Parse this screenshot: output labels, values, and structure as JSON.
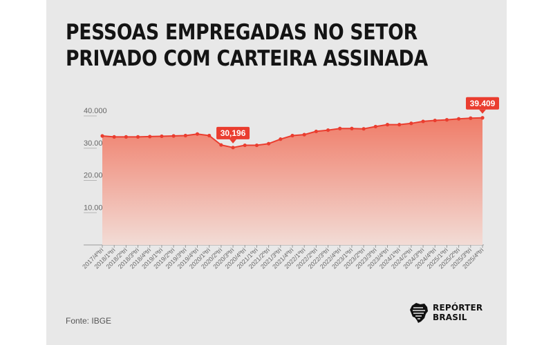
{
  "title_lines": [
    "PESSOAS EMPREGADAS NO SETOR",
    "PRIVADO COM CARTEIRA ASSINADA"
  ],
  "source": "Fonte: IBGE",
  "logo": {
    "line1": "REPÓRTER",
    "line2": "BRASIL",
    "icon": "brazil-map-icon"
  },
  "colors": {
    "accent": "#ea3d2f",
    "area_top": "#f07c68",
    "area_bottom": "#f2dcd6",
    "background": "#e8e8e8",
    "title": "#141414"
  },
  "chart_data": {
    "type": "area",
    "title": "PESSOAS EMPREGADAS NO SETOR PRIVADO COM CARTEIRA ASSINADA",
    "xlabel": "",
    "ylabel": "",
    "ylim": [
      0,
      40000
    ],
    "yticks": [
      10000,
      20000,
      30000,
      40000
    ],
    "ytick_labels": [
      "10.000",
      "20.000",
      "30.000",
      "40.000"
    ],
    "grid": false,
    "categories": [
      "2017/4ºtri",
      "2018/1ºtri",
      "2018/2ºtri",
      "2018/3ºtri",
      "2018/4ºtri",
      "2019/1ºtri",
      "2019/2ºtri",
      "2019/3ºtri",
      "2019/4ºtri",
      "2020/1ºtri",
      "2020/2ºtri",
      "2020/3ºtri",
      "2020/4ºtri",
      "2021/1ºtri",
      "2021/2ºtri",
      "2021/3ºtri",
      "2021/4ºtri",
      "2022/1ºtri",
      "2022/2ºtri",
      "2022/3ºtri",
      "2022/4ºtri",
      "2023/1ºtri",
      "2023/2ºtri",
      "2023/3ºtri",
      "2023/4ºtri",
      "2024/1ºtri",
      "2024/2ºtri",
      "2024/3ºtri",
      "2024/4ºtri",
      "2025/1ºtri",
      "2025/2ºtri",
      "2025/3ºtri",
      "2025/4ºtri"
    ],
    "values": [
      33800,
      33500,
      33500,
      33500,
      33600,
      33700,
      33800,
      33900,
      34400,
      33900,
      31000,
      30196,
      30900,
      30900,
      31400,
      32800,
      33900,
      34200,
      35200,
      35600,
      36100,
      36100,
      36000,
      36700,
      37300,
      37300,
      37700,
      38300,
      38600,
      38800,
      39100,
      39300,
      39409
    ],
    "annotations": [
      {
        "category": "2020/3ºtri",
        "value": 30196,
        "label": "30,196"
      },
      {
        "category": "2025/4ºtri",
        "value": 39409,
        "label": "39.409"
      }
    ]
  }
}
